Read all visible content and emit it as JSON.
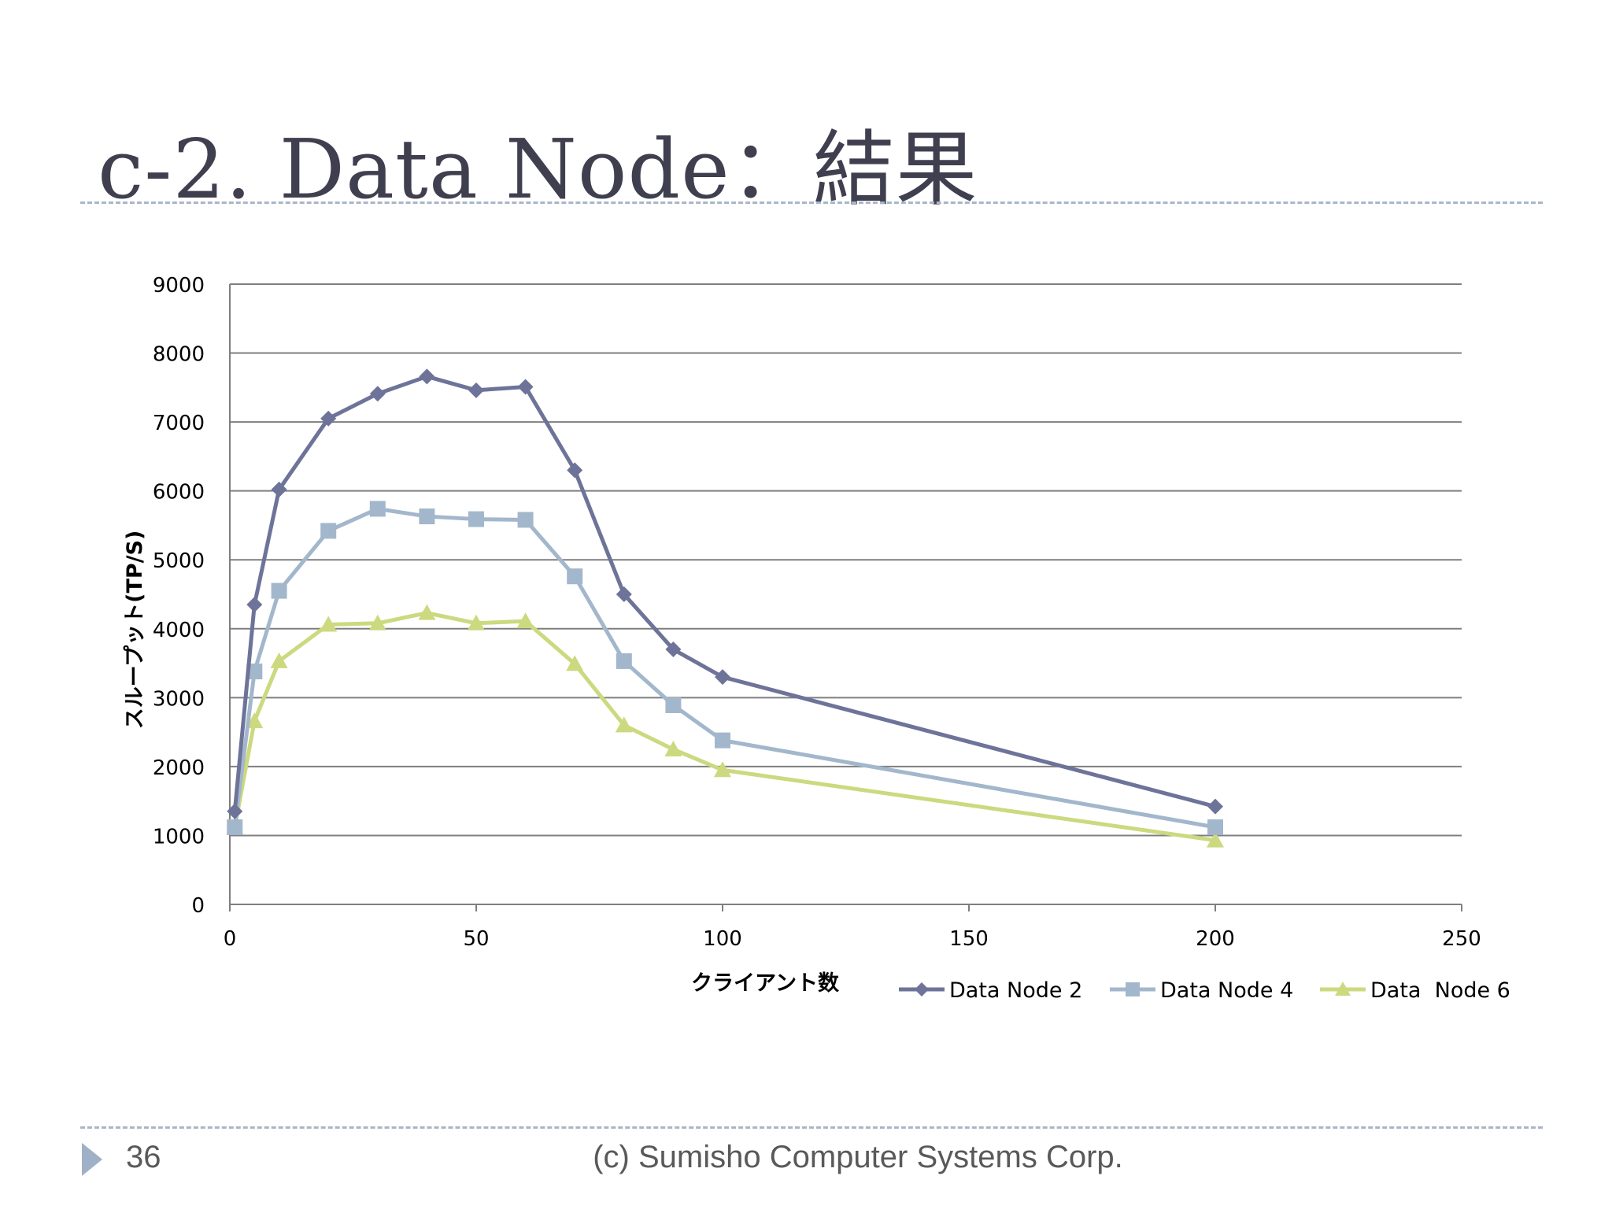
{
  "slide": {
    "title": "c-2. Data Node：結果",
    "page_number": "36",
    "footer": "(c) Sumisho Computer Systems Corp."
  },
  "chart_data": {
    "type": "line",
    "title": "",
    "xlabel": "クライアント数",
    "ylabel": "スループット(TP/S)",
    "xlim": [
      0,
      250
    ],
    "ylim": [
      0,
      9000
    ],
    "x_ticks": [
      "0",
      "50",
      "100",
      "150",
      "200",
      "250"
    ],
    "y_ticks": [
      "0",
      "1000",
      "2000",
      "3000",
      "4000",
      "5000",
      "6000",
      "7000",
      "8000",
      "9000"
    ],
    "grid": "horizontal",
    "legend_position": "bottom-right",
    "series": [
      {
        "name": "Data Node 2",
        "color": "#6e7399",
        "marker": "diamond",
        "x": [
          1,
          5,
          10,
          20,
          30,
          40,
          50,
          60,
          70,
          80,
          90,
          100,
          200
        ],
        "y": [
          1350,
          4350,
          6020,
          7050,
          7410,
          7660,
          7460,
          7510,
          6300,
          4500,
          3700,
          3300,
          1420
        ]
      },
      {
        "name": "Data Node 4",
        "color": "#a3b7cc",
        "marker": "square",
        "x": [
          1,
          5,
          10,
          20,
          30,
          40,
          50,
          60,
          70,
          80,
          90,
          100,
          200
        ],
        "y": [
          1120,
          3380,
          4550,
          5420,
          5740,
          5630,
          5590,
          5580,
          4760,
          3530,
          2890,
          2380,
          1120
        ]
      },
      {
        "name": "Data  Node 6",
        "color": "#ccd97f",
        "marker": "triangle",
        "x": [
          1,
          5,
          10,
          20,
          30,
          40,
          50,
          60,
          70,
          80,
          90,
          100,
          200
        ],
        "y": [
          1120,
          2660,
          3530,
          4060,
          4080,
          4230,
          4080,
          4110,
          3490,
          2600,
          2250,
          1950,
          930
        ]
      }
    ]
  }
}
